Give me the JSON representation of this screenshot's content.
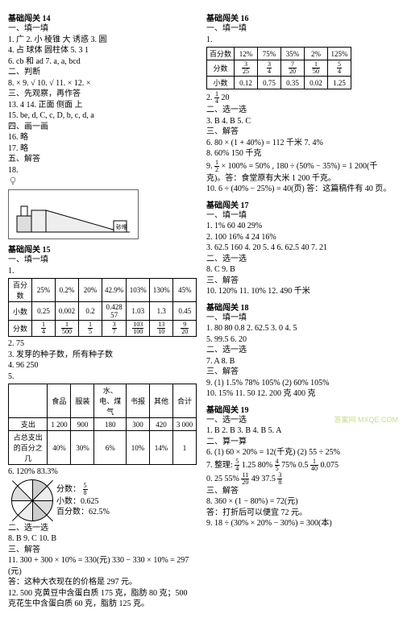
{
  "left": {
    "s14": {
      "title": "基础闯关 14",
      "h1": "一、填一填",
      "l1": "1. 广  2. 小  棱锥  大  诱惑  3. 圆",
      "l2": "4. 占  球体  圆柱体  5. 3  1",
      "l3": "6. cb 和 ad  7. a, a, bcd",
      "h2": "二、判断",
      "l4": "8. ×  9. √  10. √  11. ×  12. ×",
      "h3": "三、先观察，再作答",
      "l5": "13. 4  14. 正面  侧面  上",
      "l6": "15. be, d, C, c, D, b, c, d, a",
      "h4": "四、画一画",
      "l7": "16. 略",
      "l8": "17. 略",
      "h5": "五、解答",
      "l9": "18."
    },
    "s15": {
      "title": "基础闯关 15",
      "h1": "一、填一填",
      "l1": "1.",
      "tbl1": {
        "r1": [
          "百分数",
          "25%",
          "0.2%",
          "20%",
          "42.9%",
          "103%",
          "130%",
          "45%"
        ],
        "r2": [
          "小数",
          "0.25",
          "0.002",
          "0.2",
          "0.428 57",
          "1.03",
          "1.3",
          "0.45"
        ],
        "r3": [
          "分数",
          "1/4",
          "1/500",
          "1/5",
          "3/7",
          "103/100",
          "13/10",
          "9/20"
        ]
      },
      "l2": "2. 75",
      "l3": "3. 发芽的种子数，所有种子数",
      "l4": "4. 96  250",
      "l5": "5.",
      "tbl2": {
        "head": [
          "",
          "食品",
          "服装",
          "水、电、煤气",
          "书报",
          "其他",
          "合计"
        ],
        "r1": [
          "支出",
          "1 200",
          "900",
          "180",
          "300",
          "420",
          "3 000"
        ],
        "r2": [
          "占总支出的百分之几",
          "40%",
          "30%",
          "6%",
          "10%",
          "14%",
          "1"
        ]
      },
      "l6": "6. 120%  83.3%",
      "pieLabels": [
        "分数：",
        "5/8",
        "小数：0.625",
        "百分数：62.5%"
      ],
      "h2": "二、选一选",
      "l7": "8. B  9. C  10. B",
      "h3": "三、解答",
      "l8": "11. 300 + 300 × 10% = 330(元)  330 − 330 × 10% = 297(元)",
      "l9": "答：这种大衣现在的价格是 297 元。",
      "l10": "12. 500 克黄豆中含蛋白质 175 克，脂肪 80 克；500 克花生中含蛋白质 60 克，脂肪 125 克。"
    }
  },
  "right": {
    "s16": {
      "title": "基础闯关 16",
      "h1": "一、填一填",
      "l1": "1.",
      "tbl": {
        "r1": [
          "百分数",
          "12%",
          "75%",
          "35%",
          "2%",
          "125%"
        ],
        "r2": [
          "分数",
          "3/25",
          "3/4",
          "7/20",
          "1/50",
          "5/4"
        ],
        "r3": [
          "小数",
          "0.12",
          "0.75",
          "0.35",
          "0.02",
          "1.25"
        ]
      },
      "l2": "2. 1/4 20",
      "h2": "二、选一选",
      "l3": "3. B  4. B  5. C",
      "h3": "三、解答",
      "l4": "6. 80 × (1 + 40%) = 112 千米  7. 4%",
      "l5": "8. 60%  150 千克",
      "l6": "9. 1/2 × 100% = 50% , 180 ÷ (50% − 35%) = 1 200(千克)。答：食堂原有大米 1 200 千克。",
      "l7": "10. 6 ÷ (40% − 25%) = 40(页) 答：这篇稿件有 40 页。"
    },
    "s17": {
      "title": "基础闯关 17",
      "h1": "一、填一填",
      "l1": "1. 1%  60  40  29%",
      "l2": "2. 100  16%  4  24  16%",
      "l3": "3. 62.5  160  4. 20  5. 4  6. 62.5  40  7. 21",
      "h2": "二、选一选",
      "l4": "8. C  9. B",
      "h3": "三、解答",
      "l5": "10. 120%  11. 10%  12. 490 千米"
    },
    "s18": {
      "title": "基础闯关 18",
      "h1": "一、填一填",
      "l1": "1. 80  80  0.8  2. 62.5  3. 0  4. 5",
      "l2": "5. 99.5  6. 20",
      "h2": "二、选一选",
      "l3": "7. A  8. B",
      "h3": "三、解答",
      "l4": "9. (1) 1.5%  78%  105%   (2) 60%  105%",
      "l5": "10. 15%  11. 50  12. 200 克  400 克"
    },
    "s19": {
      "title": "基础闯关 19",
      "h1": "一、选一选",
      "l1": "1. B  2. B  3. B  4. B  5. A",
      "h2": "二、算一算",
      "l2": "6. (1) 60 × 20% = 12(千克)  (2) 55 ÷ 25%",
      "l3": "7. 整理: 5/4  1.25  80%  4/5  75%  0.5  1/40  0.075",
      "l4": "0. 25  55%  11/20  49  37.5  3/8",
      "h3": "三、解答",
      "l5": "8. 360 × (1 − 80%) = 72(元)",
      "l6": "答：打折后可以便宜 72 元。",
      "l7": "9. 18 ÷ (30% × 20% − 30%) = 300(本)"
    }
  },
  "watermark": "答案网 MXQE.COM"
}
